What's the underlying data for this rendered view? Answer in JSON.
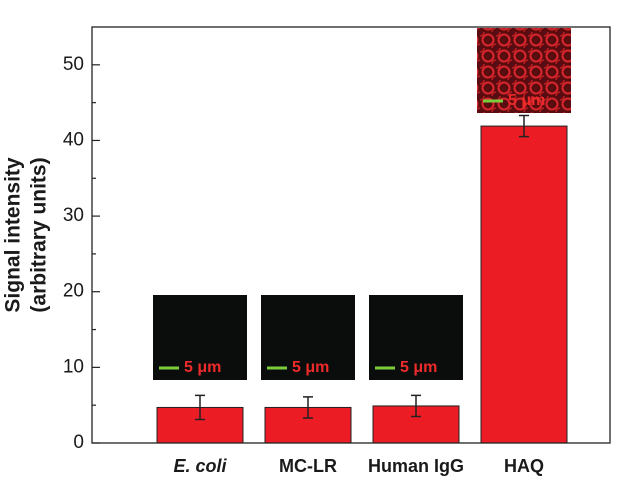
{
  "chart_data": {
    "type": "bar",
    "y_label": [
      "Signal intensity",
      "(arbitrary units)"
    ],
    "categories": [
      "E. coli",
      "MC-LR",
      "Human IgG",
      "HAQ"
    ],
    "values": [
      4.7,
      4.7,
      4.9,
      41.9
    ],
    "errors": [
      1.6,
      1.4,
      1.4,
      1.4
    ],
    "color": "#ec1c24",
    "ylim": [
      0,
      55
    ],
    "yticks": [
      0,
      10,
      20,
      30,
      40,
      50
    ],
    "yminorticks": [
      5,
      15,
      25,
      35,
      45
    ],
    "inset_scale_labels": [
      "5 μm",
      "5 μm",
      "5 μm",
      "5 μm"
    ]
  }
}
